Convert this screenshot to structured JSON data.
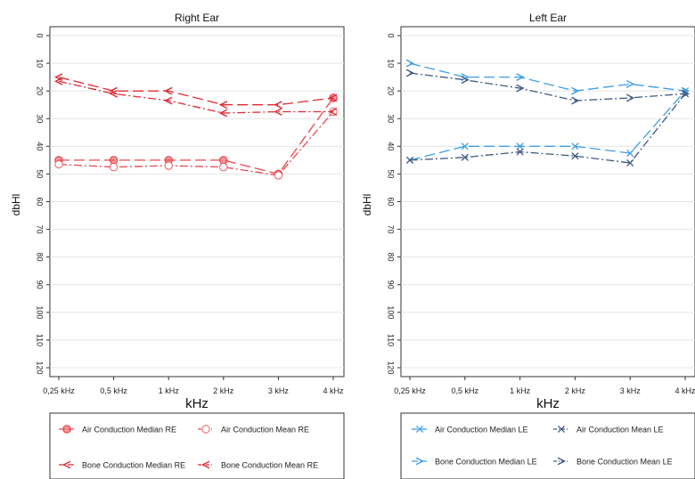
{
  "chart_data": [
    {
      "type": "line",
      "title": "Right Ear",
      "xlabel": "kHz",
      "ylabel": "dbHl",
      "categories": [
        "0,25 kHz",
        "0,5 kHz",
        "1 kHz",
        "2 kHz",
        "3 kHz",
        "4 kHz"
      ],
      "ylim": [
        0,
        120
      ],
      "yticks": [
        0,
        10,
        20,
        30,
        40,
        50,
        60,
        70,
        80,
        90,
        100,
        110,
        120
      ],
      "y_inverted": true,
      "grid": true,
      "legend_position": "bottom",
      "series": [
        {
          "name": "Air Conduction Median RE",
          "color": "#e8464c",
          "dash": "long",
          "marker": "filled-circle",
          "values": [
            45,
            45,
            45,
            45,
            50,
            22.5
          ]
        },
        {
          "name": "Air Conduction Mean RE",
          "color": "#e8464c",
          "dash": "dashdot",
          "marker": "open-circle",
          "values": [
            46.5,
            47.5,
            47,
            47.5,
            50.5,
            27.5
          ]
        },
        {
          "name": "Bone Conduction Median RE",
          "color": "#dd2a34",
          "dash": "long",
          "marker": "arrow-left",
          "values": [
            15,
            20,
            20,
            25,
            25,
            22.5
          ]
        },
        {
          "name": "Bone Conduction Mean RE",
          "color": "#dd2a34",
          "dash": "dashdot",
          "marker": "arrow-left",
          "values": [
            16.5,
            21,
            23.5,
            28,
            27.5,
            27.5
          ]
        }
      ]
    },
    {
      "type": "line",
      "title": "Left Ear",
      "xlabel": "kHz",
      "ylabel": "dbHl",
      "categories": [
        "0,25 kHz",
        "0,5 kHz",
        "1 kHz",
        "2 kHz",
        "3 kHz",
        "4 kHz"
      ],
      "ylim": [
        0,
        120
      ],
      "yticks": [
        0,
        10,
        20,
        30,
        40,
        50,
        60,
        70,
        80,
        90,
        100,
        110,
        120
      ],
      "y_inverted": true,
      "grid": true,
      "legend_position": "bottom",
      "series": [
        {
          "name": "Air Conduction Median LE",
          "color": "#3d9ee6",
          "dash": "long",
          "marker": "x",
          "values": [
            45,
            40,
            40,
            40,
            42.5,
            20
          ]
        },
        {
          "name": "Air Conduction Mean LE",
          "color": "#3f5a82",
          "dash": "dashdot",
          "marker": "x",
          "values": [
            45,
            44,
            42,
            43.5,
            46,
            21
          ]
        },
        {
          "name": "Bone Conduction Median LE",
          "color": "#3d9ee6",
          "dash": "long",
          "marker": "arrow-right",
          "values": [
            10,
            15,
            15,
            20,
            17.5,
            20
          ]
        },
        {
          "name": "Bone Conduction Mean LE",
          "color": "#3f5a82",
          "dash": "dashdot",
          "marker": "arrow-right",
          "values": [
            13.5,
            16,
            19,
            23.5,
            22.5,
            21
          ]
        }
      ]
    }
  ]
}
